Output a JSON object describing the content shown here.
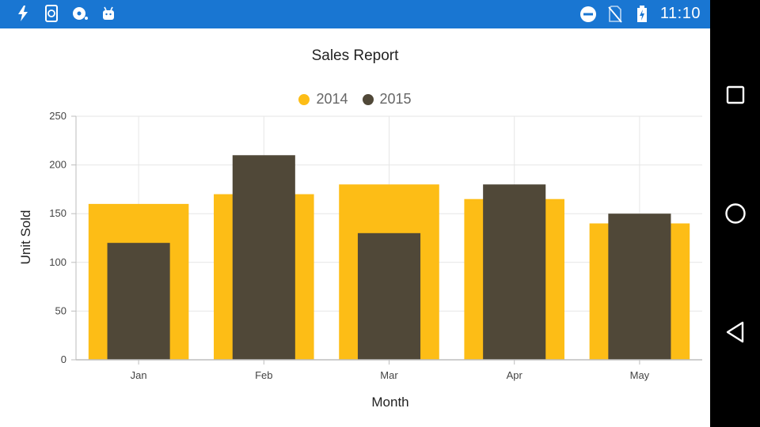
{
  "status_bar": {
    "left_icons": [
      "flash-icon",
      "phone-sync-icon",
      "disc-icon",
      "android-icon"
    ],
    "right_icons": [
      "do-not-disturb-icon",
      "no-sim-icon",
      "battery-charging-icon"
    ],
    "time": "11:10"
  },
  "nav_bar": {
    "buttons": [
      "recent-apps-button",
      "home-button",
      "back-button"
    ]
  },
  "colors": {
    "status_bar": "#1976d2",
    "series_2014": "#fdbd16",
    "series_2015": "#504838",
    "gridline": "#e6e6e6",
    "axis": "#bdbdbd"
  },
  "chart_data": {
    "type": "bar",
    "title": "Sales Report",
    "xlabel": "Month",
    "ylabel": "Unit Sold",
    "categories": [
      "Jan",
      "Feb",
      "Mar",
      "Apr",
      "May"
    ],
    "series": [
      {
        "name": "2014",
        "values": [
          160,
          170,
          180,
          165,
          140
        ]
      },
      {
        "name": "2015",
        "values": [
          120,
          210,
          130,
          180,
          150
        ]
      }
    ],
    "ylim": [
      0,
      250
    ],
    "yticks": [
      0,
      50,
      100,
      150,
      200,
      250
    ],
    "grid": true,
    "legend_position": "top"
  }
}
